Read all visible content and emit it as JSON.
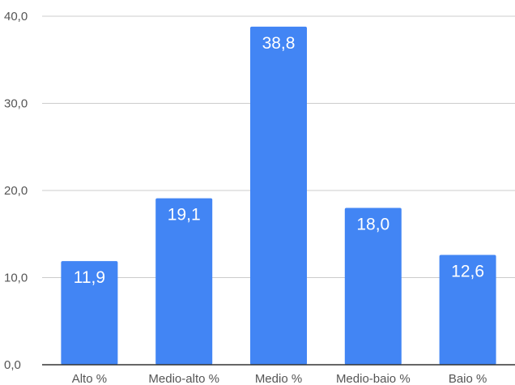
{
  "chart_data": {
    "type": "bar",
    "categories": [
      "Alto %",
      "Medio-alto %",
      "Medio %",
      "Medio-baio %",
      "Baio %"
    ],
    "values": [
      11.9,
      19.1,
      38.8,
      18.0,
      12.6
    ],
    "value_labels": [
      "11,9",
      "19,1",
      "38,8",
      "18,0",
      "12,6"
    ],
    "y_ticks": [
      0,
      10,
      20,
      30,
      40
    ],
    "y_tick_labels": [
      "0,0",
      "10,0",
      "20,0",
      "30,0",
      "40,0"
    ],
    "ylim": [
      0,
      40
    ],
    "grid": true,
    "bar_color": "#4285f4",
    "gridline_color": "#cccccc",
    "axis_color": "#333333",
    "text_color": "#555555"
  }
}
